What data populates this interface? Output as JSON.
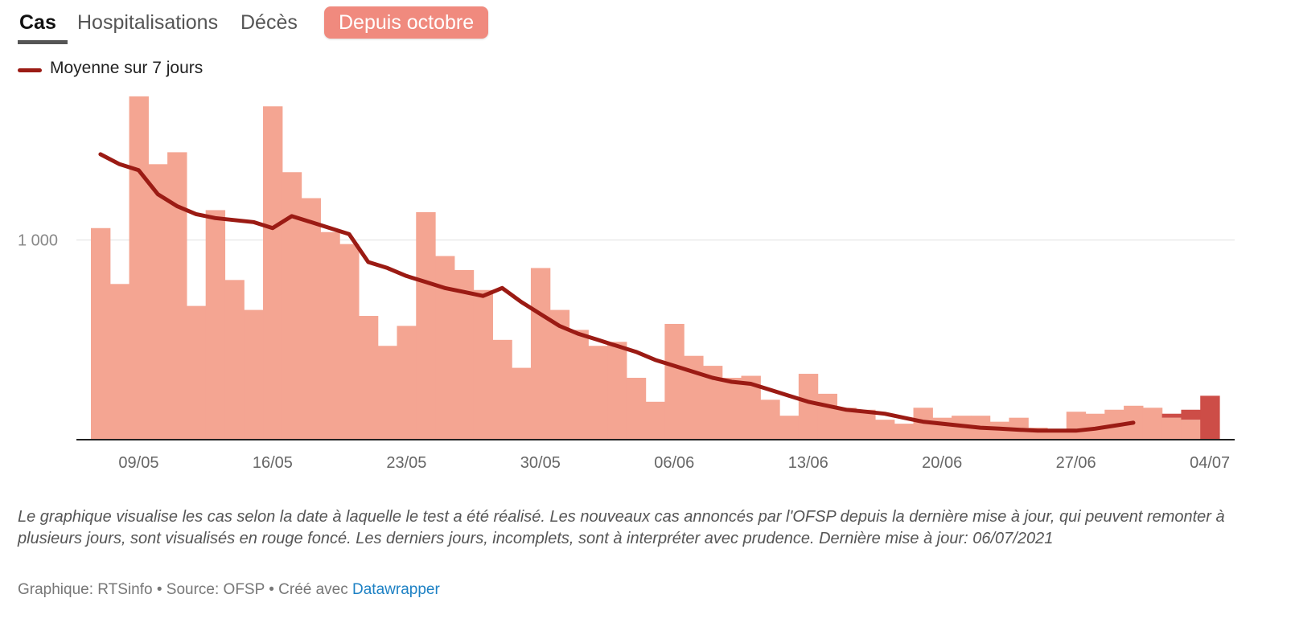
{
  "tabs": [
    {
      "label": "Cas"
    },
    {
      "label": "Hospitalisations"
    },
    {
      "label": "Décès"
    }
  ],
  "period_button": "Depuis octobre",
  "legend": {
    "line_label": "Moyenne sur 7 jours"
  },
  "colors": {
    "bar": "#f4a592",
    "bar_new": "#cd4d47",
    "line": "#9b1b14",
    "pill": "#f08a7e",
    "link": "#1d81c4"
  },
  "chart_data": {
    "type": "bar",
    "x_start": "07/05",
    "categories": [
      "07/05",
      "08/05",
      "09/05",
      "10/05",
      "11/05",
      "12/05",
      "13/05",
      "14/05",
      "15/05",
      "16/05",
      "17/05",
      "18/05",
      "19/05",
      "20/05",
      "21/05",
      "22/05",
      "23/05",
      "24/05",
      "25/05",
      "26/05",
      "27/05",
      "28/05",
      "29/05",
      "30/05",
      "31/05",
      "01/06",
      "02/06",
      "03/06",
      "04/06",
      "05/06",
      "06/06",
      "07/06",
      "08/06",
      "09/06",
      "10/06",
      "11/06",
      "12/06",
      "13/06",
      "14/06",
      "15/06",
      "16/06",
      "17/06",
      "18/06",
      "19/06",
      "20/06",
      "21/06",
      "22/06",
      "23/06",
      "24/06",
      "25/06",
      "26/06",
      "27/06",
      "28/06",
      "29/06",
      "30/06",
      "01/07",
      "02/07",
      "03/07",
      "04/07"
    ],
    "series": [
      {
        "type": "bar",
        "values": [
          1060,
          780,
          1720,
          1380,
          1440,
          670,
          1150,
          800,
          650,
          1670,
          1340,
          1210,
          1040,
          980,
          620,
          470,
          570,
          1140,
          920,
          850,
          750,
          500,
          360,
          860,
          650,
          550,
          470,
          490,
          310,
          190,
          580,
          420,
          370,
          310,
          320,
          200,
          120,
          330,
          230,
          160,
          150,
          100,
          80,
          160,
          110,
          120,
          120,
          90,
          110,
          60,
          50,
          140,
          130,
          150,
          170,
          160,
          110,
          100,
          0
        ]
      },
      {
        "type": "bar_new",
        "values": [
          0,
          0,
          0,
          0,
          0,
          0,
          0,
          0,
          0,
          0,
          0,
          0,
          0,
          0,
          0,
          0,
          0,
          0,
          0,
          0,
          0,
          0,
          0,
          0,
          0,
          0,
          0,
          0,
          0,
          0,
          0,
          0,
          0,
          0,
          0,
          0,
          0,
          0,
          0,
          0,
          0,
          0,
          0,
          0,
          0,
          0,
          0,
          0,
          0,
          0,
          0,
          0,
          0,
          0,
          0,
          0,
          20,
          50,
          220
        ]
      },
      {
        "type": "line",
        "name": "Moyenne sur 7 jours",
        "values": [
          1430,
          1380,
          1350,
          1230,
          1170,
          1130,
          1110,
          1100,
          1090,
          1060,
          1120,
          1090,
          1060,
          1030,
          890,
          860,
          820,
          790,
          760,
          740,
          720,
          760,
          690,
          630,
          570,
          530,
          500,
          470,
          440,
          400,
          370,
          340,
          310,
          290,
          280,
          250,
          220,
          190,
          170,
          150,
          140,
          130,
          110,
          90,
          80,
          70,
          60,
          55,
          50,
          45,
          45,
          45,
          55,
          70,
          85,
          null,
          null,
          null,
          null
        ]
      }
    ],
    "y_ticks": [
      {
        "value": 1000,
        "label": "1 000"
      }
    ],
    "x_tick_labels": [
      "09/05",
      "16/05",
      "23/05",
      "30/05",
      "06/06",
      "13/06",
      "20/06",
      "27/06",
      "04/07"
    ],
    "ylim": [
      0,
      1800
    ],
    "grid": true,
    "legend_position": "top-left"
  },
  "note": "Le graphique visualise les cas selon la date à laquelle le test a été réalisé. Les nouveaux cas annoncés par l'OFSP depuis la dernière mise à jour, qui peuvent remonter à plusieurs jours, sont visualisés en rouge foncé. Les derniers jours, incomplets, sont à interpréter avec prudence. Dernière mise à jour: 06/07/2021",
  "footer": {
    "credit": "Graphique: RTSinfo • Source: OFSP • Créé avec ",
    "link_text": "Datawrapper"
  }
}
